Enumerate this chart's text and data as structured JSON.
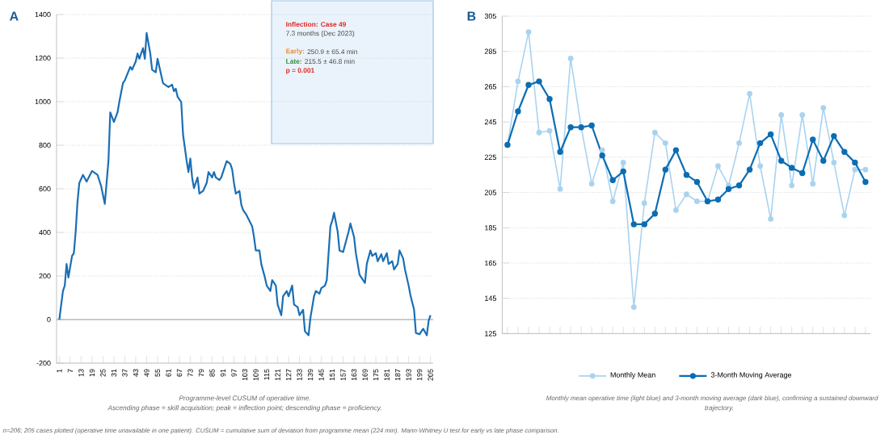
{
  "chart_data": [
    {
      "type": "line",
      "x": [
        1,
        3,
        4,
        5,
        6,
        8,
        9,
        10,
        11,
        12,
        14,
        16,
        19,
        22,
        24,
        26,
        28,
        29,
        31,
        33,
        34,
        36,
        37,
        40,
        41,
        43,
        44,
        45,
        47,
        48,
        49,
        51,
        52,
        54,
        55,
        57,
        58,
        60,
        61,
        63,
        64,
        65,
        66,
        68,
        69,
        71,
        72,
        73,
        74,
        75,
        77,
        78,
        80,
        82,
        83,
        85,
        86,
        87,
        89,
        90,
        92,
        93,
        95,
        96,
        97,
        98,
        100,
        101,
        102,
        104,
        107,
        108,
        109,
        111,
        112,
        114,
        115,
        117,
        118,
        120,
        121,
        123,
        124,
        126,
        127,
        129,
        130,
        132,
        133,
        135,
        136,
        138,
        139,
        141,
        142,
        144,
        145,
        147,
        148,
        150,
        151,
        152,
        154,
        155,
        157,
        158,
        160,
        161,
        163,
        164,
        166,
        167,
        169,
        170,
        172,
        173,
        175,
        176,
        178,
        179,
        181,
        182,
        184,
        185,
        187,
        188,
        190,
        191,
        193,
        194,
        196,
        197,
        199,
        200,
        201,
        203,
        204,
        205
      ],
      "values": [
        0,
        131,
        156,
        255,
        193,
        292,
        305,
        404,
        541,
        627,
        664,
        633,
        682,
        664,
        612,
        531,
        727,
        951,
        907,
        951,
        1000,
        1086,
        1098,
        1160,
        1147,
        1184,
        1221,
        1197,
        1246,
        1197,
        1315,
        1221,
        1147,
        1135,
        1197,
        1122,
        1085,
        1073,
        1067,
        1078,
        1048,
        1060,
        1023,
        999,
        850,
        727,
        677,
        739,
        652,
        603,
        652,
        578,
        590,
        627,
        677,
        652,
        677,
        652,
        640,
        652,
        702,
        727,
        714,
        689,
        627,
        578,
        590,
        528,
        503,
        478,
        428,
        379,
        317,
        317,
        255,
        193,
        156,
        131,
        181,
        156,
        69,
        20,
        107,
        131,
        107,
        156,
        69,
        57,
        20,
        45,
        -54,
        -72,
        7,
        107,
        131,
        119,
        144,
        156,
        181,
        428,
        453,
        490,
        404,
        317,
        310,
        342,
        404,
        441,
        379,
        305,
        206,
        193,
        168,
        255,
        317,
        292,
        305,
        268,
        300,
        268,
        305,
        255,
        268,
        230,
        255,
        317,
        280,
        230,
        156,
        111,
        45,
        -62,
        -67,
        -54,
        -42,
        -72,
        -5,
        20
      ],
      "color": "#1a6fb5",
      "xlim": [
        -0.5,
        206.5
      ],
      "xticks": [
        1,
        7,
        13,
        19,
        25,
        31,
        37,
        43,
        49,
        55,
        61,
        67,
        73,
        79,
        85,
        91,
        97,
        103,
        109,
        115,
        121,
        127,
        133,
        139,
        145,
        151,
        157,
        163,
        169,
        175,
        181,
        187,
        193,
        199,
        205
      ],
      "ylim": [
        -200,
        1400
      ],
      "yticks": [
        -200,
        0,
        200,
        400,
        600,
        800,
        1000,
        1200,
        1400
      ],
      "grid": "y",
      "ref_lines": [
        {
          "axis": "y",
          "value": 0,
          "color": "#9e9e9e"
        }
      ],
      "annotations": [
        "A",
        "Inflection: Case 49",
        "7.3 months (Dec 2023)",
        "Early:",
        "250.9 ± 65.4 min",
        "Late:",
        "215.5 ± 46.8 min",
        "p = 0.001",
        "Programme-level CUSUM of operative time.",
        "Ascending phase = skill acquisition; peak = inflection point; descending phase = proficiency.",
        "n=206; 205 cases plotted (operative time unavailable in one patient). CUSUM = cumulative sum of deviation from programme mean (224 min). Mann-Whitney U test for early vs late phase comparison."
      ]
    },
    {
      "type": "line",
      "categories": [
        null,
        null,
        null,
        null,
        null,
        null,
        null,
        null,
        null,
        null,
        null,
        null,
        null,
        null,
        null,
        null,
        null,
        null,
        null,
        null,
        null,
        null,
        null,
        null,
        null,
        null,
        null,
        null,
        null,
        null,
        null,
        null,
        null,
        null,
        null
      ],
      "series": [
        {
          "name": "Monthly Mean",
          "color": "#a9d3ef",
          "values": [
            232,
            268,
            296,
            239,
            240,
            207,
            281,
            242,
            210,
            229,
            200,
            222,
            140,
            199,
            239,
            233,
            195,
            204,
            200,
            200,
            220,
            209,
            233,
            261,
            220,
            190,
            249,
            209,
            249,
            210,
            253,
            222,
            192,
            218,
            218
          ]
        },
        {
          "name": "3-Month Moving Average",
          "color": "#0b6db3",
          "values": [
            232,
            251,
            266,
            268,
            258,
            228,
            242,
            242,
            243,
            226,
            212,
            217,
            187,
            187,
            193,
            218,
            229,
            215,
            211,
            200,
            201,
            207,
            209,
            218,
            233,
            238,
            223,
            219,
            216,
            235,
            223,
            237,
            228,
            222,
            211
          ]
        }
      ],
      "ylim": [
        125,
        305
      ],
      "yticks": [
        125,
        145,
        165,
        185,
        205,
        225,
        245,
        265,
        285,
        305
      ],
      "grid": "y",
      "legend": "bottom",
      "marker": "circle",
      "annotations": [
        "B",
        "Monthly mean operative time (light blue) and 3-month moving average (dark blue), confirming a sustained downward",
        "trajectory."
      ]
    }
  ]
}
